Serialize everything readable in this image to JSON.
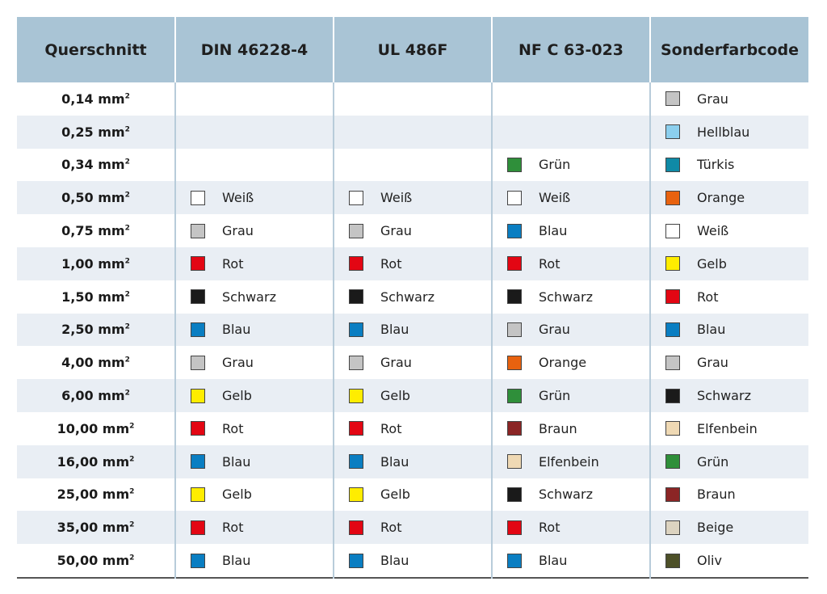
{
  "headers": [
    "Querschnitt",
    "DIN 46228-4",
    "UL 486F",
    "NF C 63-023",
    "Sonderfarbcode"
  ],
  "colors": {
    "Weiß": "#ffffff",
    "Grau": "#c4c4c4",
    "Rot": "#e30613",
    "Schwarz": "#1a1a1a",
    "Blau": "#0a7ec2",
    "Gelb": "#ffed00",
    "Grün": "#2f8f3a",
    "Braun": "#8b2525",
    "Elfenbein": "#efd9b4",
    "Orange": "#e8620f",
    "Hellblau": "#8ccfee",
    "Türkis": "#0f8aa6",
    "Beige": "#dcd3c0",
    "Oliv": "#4d5028"
  },
  "rows": [
    {
      "size": "0,14 mm",
      "sup": "2",
      "din": "",
      "ul": "",
      "nf": "",
      "sonder": "Grau"
    },
    {
      "size": "0,25 mm",
      "sup": "2",
      "din": "",
      "ul": "",
      "nf": "",
      "sonder": "Hellblau"
    },
    {
      "size": "0,34 mm",
      "sup": "2",
      "din": "",
      "ul": "",
      "nf": "Grün",
      "sonder": "Türkis"
    },
    {
      "size": "0,50 mm",
      "sup": "2",
      "din": "Weiß",
      "ul": "Weiß",
      "nf": "Weiß",
      "sonder": "Orange"
    },
    {
      "size": "0,75 mm",
      "sup": "2",
      "din": "Grau",
      "ul": "Grau",
      "nf": "Blau",
      "sonder": "Weiß"
    },
    {
      "size": "1,00 mm",
      "sup": "2",
      "din": "Rot",
      "ul": "Rot",
      "nf": "Rot",
      "sonder": "Gelb"
    },
    {
      "size": "1,50 mm",
      "sup": "2",
      "din": "Schwarz",
      "ul": "Schwarz",
      "nf": "Schwarz",
      "sonder": "Rot"
    },
    {
      "size": "2,50 mm",
      "sup": "2",
      "din": "Blau",
      "ul": "Blau",
      "nf": "Grau",
      "sonder": "Blau"
    },
    {
      "size": "4,00 mm",
      "sup": "2",
      "din": "Grau",
      "ul": "Grau",
      "nf": "Orange",
      "sonder": "Grau"
    },
    {
      "size": "6,00 mm",
      "sup": "2",
      "din": "Gelb",
      "ul": "Gelb",
      "nf": "Grün",
      "sonder": "Schwarz"
    },
    {
      "size": "10,00 mm",
      "sup": "2",
      "din": "Rot",
      "ul": "Rot",
      "nf": "Braun",
      "sonder": "Elfenbein"
    },
    {
      "size": "16,00 mm",
      "sup": "2",
      "din": "Blau",
      "ul": "Blau",
      "nf": "Elfenbein",
      "sonder": "Grün"
    },
    {
      "size": "25,00 mm",
      "sup": "2",
      "din": "Gelb",
      "ul": "Gelb",
      "nf": "Schwarz",
      "sonder": "Braun"
    },
    {
      "size": "35,00 mm",
      "sup": "2",
      "din": "Rot",
      "ul": "Rot",
      "nf": "Rot",
      "sonder": "Beige"
    },
    {
      "size": "50,00 mm",
      "sup": "2",
      "din": "Blau",
      "ul": "Blau",
      "nf": "Blau",
      "sonder": "Oliv"
    }
  ]
}
